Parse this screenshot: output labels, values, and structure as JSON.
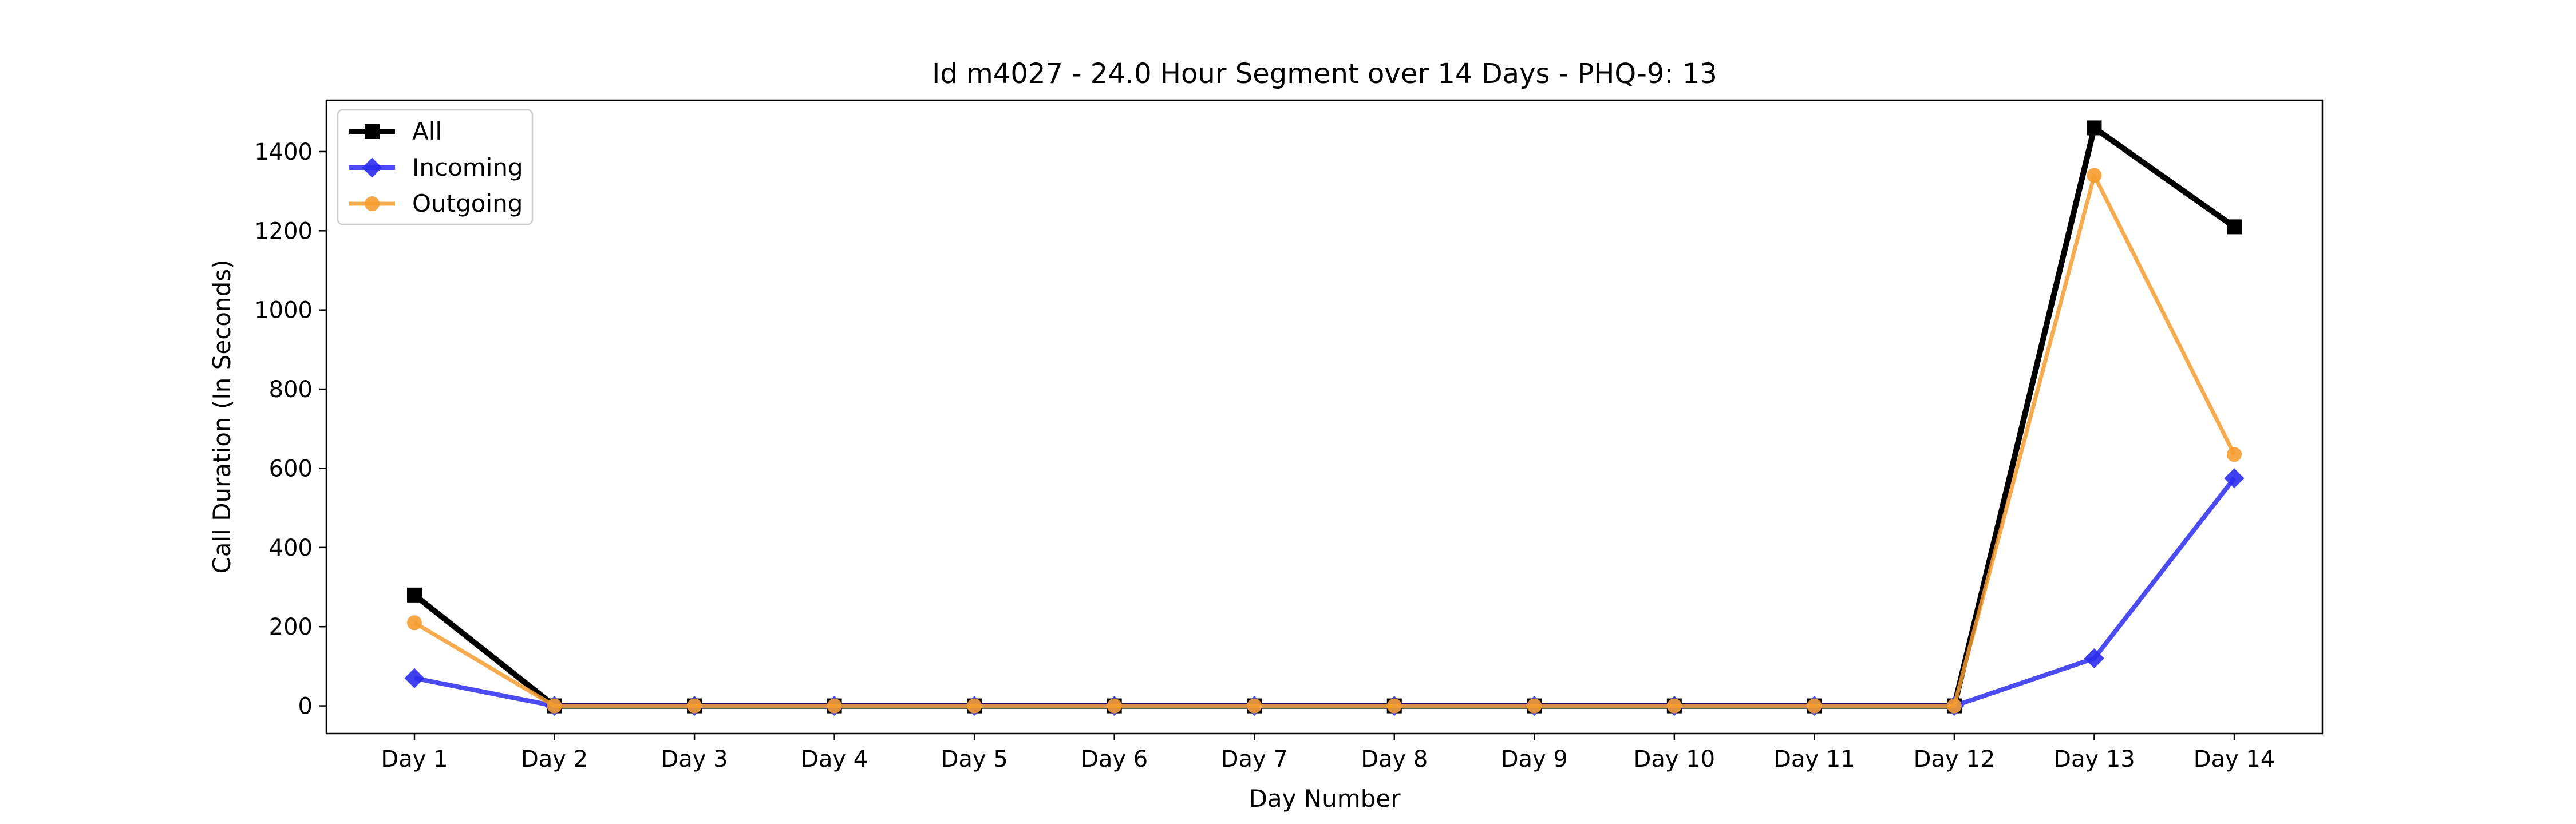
{
  "chart_data": {
    "type": "line",
    "title": "Id m4027 - 24.0 Hour Segment over 14 Days - PHQ-9: 13",
    "xlabel": "Day Number",
    "ylabel": "Call Duration (In Seconds)",
    "categories": [
      "Day 1",
      "Day 2",
      "Day 3",
      "Day 4",
      "Day 5",
      "Day 6",
      "Day 7",
      "Day 8",
      "Day 9",
      "Day 10",
      "Day 11",
      "Day 12",
      "Day 13",
      "Day 14"
    ],
    "ylim": [
      -70,
      1530
    ],
    "yticks": [
      0,
      200,
      400,
      600,
      800,
      1000,
      1200,
      1400
    ],
    "grid": false,
    "legend_position": "top-left",
    "series": [
      {
        "name": "All",
        "color": "#000000",
        "marker": "square",
        "values": [
          280,
          0,
          0,
          0,
          0,
          0,
          0,
          0,
          0,
          0,
          0,
          0,
          1460,
          1210
        ]
      },
      {
        "name": "Incoming",
        "color": "#2b2bee",
        "marker": "diamond",
        "values": [
          70,
          0,
          0,
          0,
          0,
          0,
          0,
          0,
          0,
          0,
          0,
          0,
          120,
          575
        ]
      },
      {
        "name": "Outgoing",
        "color": "#f59d2f",
        "marker": "circle",
        "values": [
          210,
          0,
          0,
          0,
          0,
          0,
          0,
          0,
          0,
          0,
          0,
          0,
          1340,
          635
        ]
      }
    ]
  }
}
